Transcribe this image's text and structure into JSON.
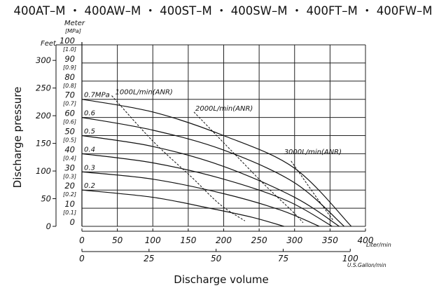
{
  "title": "400AT–M ・ 400AW–M ・ 400ST–M ・ 400SW–M ・ 400FT–M ・ 400FW–M",
  "chart_data": {
    "type": "line",
    "xlabel": "Discharge volume",
    "ylabel": "Discharge pressure",
    "x_axis_primary": {
      "unit": "Liter/min",
      "range": [
        0,
        400
      ],
      "ticks": [
        "0",
        "50",
        "100",
        "150",
        "200",
        "250",
        "300",
        "350",
        "400"
      ]
    },
    "x_axis_secondary": {
      "unit": "U.S.Gallon/min",
      "ticks": [
        "0",
        "25",
        "50",
        "75",
        "100"
      ]
    },
    "y_axis_meter": {
      "unit": "Meter",
      "range": [
        0,
        100
      ],
      "ticks": [
        "0",
        "10",
        "20",
        "30",
        "40",
        "50",
        "60",
        "70",
        "80",
        "90",
        "100"
      ]
    },
    "y_axis_mpa": {
      "unit": "[MPa]",
      "ticks": [
        "[0.1]",
        "[0.2]",
        "[0.3]",
        "[0.4]",
        "[0.5]",
        "[0.6]",
        "[0.7]",
        "[0.8]",
        "[0.9]",
        "[1.0]"
      ]
    },
    "y_axis_feet": {
      "unit": "Feet",
      "ticks": [
        "0",
        "50",
        "100",
        "150",
        "200",
        "250",
        "300"
      ]
    },
    "grid": true,
    "series": [
      {
        "name": "0.7MPa",
        "x": [
          0,
          100,
          200,
          300,
          380
        ],
        "y": [
          70,
          63,
          50,
          32,
          0
        ]
      },
      {
        "name": "0.6",
        "x": [
          0,
          100,
          200,
          300,
          370
        ],
        "y": [
          60,
          53,
          42,
          24,
          0
        ]
      },
      {
        "name": "0.5",
        "x": [
          0,
          100,
          200,
          300,
          363
        ],
        "y": [
          50,
          44,
          33,
          16,
          0
        ]
      },
      {
        "name": "0.4",
        "x": [
          0,
          100,
          200,
          290,
          353
        ],
        "y": [
          40,
          35,
          26,
          14,
          0
        ]
      },
      {
        "name": "0.3",
        "x": [
          0,
          100,
          200,
          280,
          335
        ],
        "y": [
          30,
          26,
          18,
          9,
          0
        ]
      },
      {
        "name": "0.2",
        "x": [
          0,
          100,
          180,
          240,
          285
        ],
        "y": [
          20,
          16,
          10,
          5,
          0
        ]
      }
    ],
    "air_consumption": [
      {
        "name": "1000L/min(ANR)",
        "x": [
          42,
          100,
          155,
          195,
          230
        ],
        "y": [
          72,
          47,
          27,
          12,
          3
        ]
      },
      {
        "name": "2000L/min(ANR)",
        "x": [
          158,
          220,
          260,
          295,
          312
        ],
        "y": [
          63,
          38,
          22,
          9,
          2
        ]
      },
      {
        "name": "3000L/min(ANR)",
        "x": [
          295,
          320,
          340,
          355
        ],
        "y": [
          36,
          22,
          11,
          3
        ]
      }
    ]
  }
}
